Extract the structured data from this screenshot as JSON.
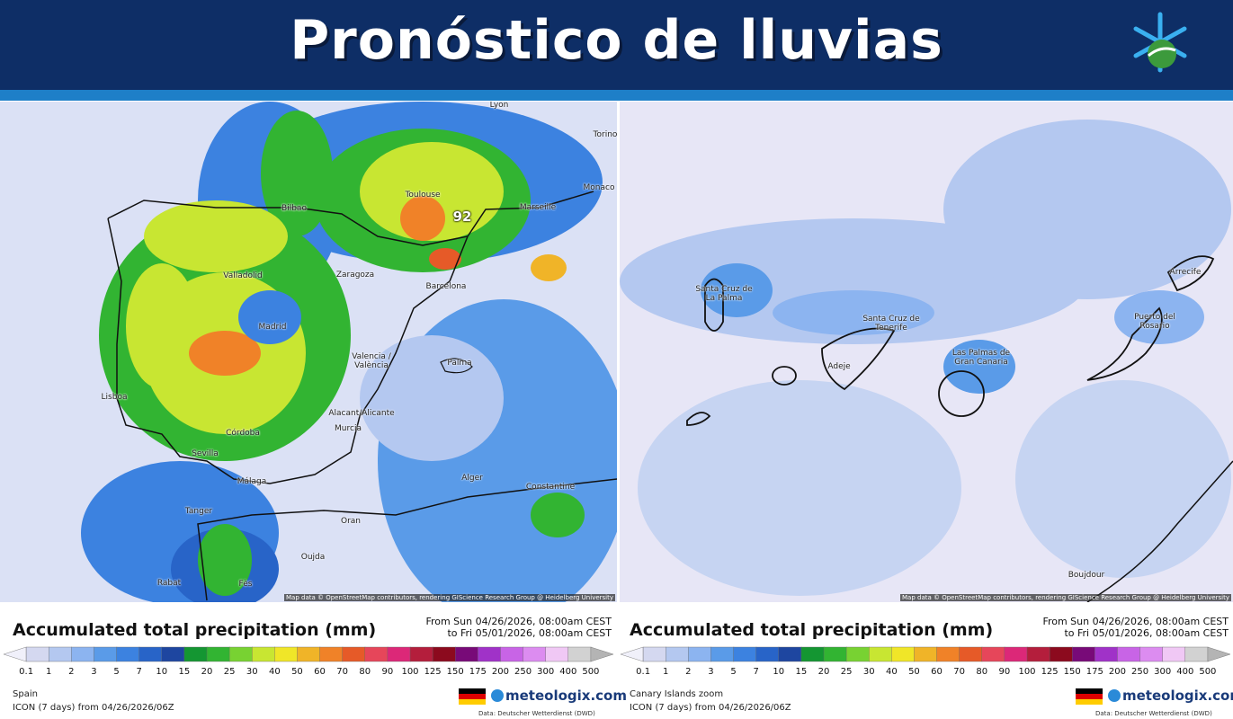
{
  "header": {
    "title": "Pronóstico de lluvias"
  },
  "attribution": "Map data © OpenStreetMap contributors, rendering GIScience Research Group @ Heidelberg University",
  "scale": {
    "labels": [
      "0.1",
      "1",
      "2",
      "3",
      "5",
      "7",
      "10",
      "15",
      "20",
      "25",
      "30",
      "40",
      "50",
      "60",
      "70",
      "80",
      "90",
      "100",
      "125",
      "150",
      "175",
      "200",
      "250",
      "300",
      "400",
      "500"
    ],
    "colors": [
      "#f0f0fa",
      "#d4d8f0",
      "#b4c8f0",
      "#8cb4f0",
      "#5a9be8",
      "#3c82e0",
      "#2864c8",
      "#1e46a0",
      "#149632",
      "#32b432",
      "#78d232",
      "#c8e632",
      "#f0e628",
      "#f0b428",
      "#f08228",
      "#e65a28",
      "#e6465a",
      "#dc2878",
      "#b41e3c",
      "#8c0a1e",
      "#780a78",
      "#a032c8",
      "#c864e6",
      "#dc8cf0",
      "#f0c8f5",
      "#d2d2d2",
      "#b4b4b4"
    ]
  },
  "panels": [
    {
      "legend": {
        "title": "Accumulated total precipitation (mm)",
        "range_from": "From Sun 04/26/2026, 08:00am CEST",
        "range_to": "to Fri 05/01/2026, 08:00am CEST",
        "region": "Spain",
        "model": "ICON (7 days) from 04/26/2026/06Z",
        "brand": "meteologix.com",
        "source": "Data: Deutscher Wetterdienst (DWD)"
      },
      "places": [
        "Bilbao",
        "Toulouse",
        "Marseille",
        "Lyon",
        "Torino",
        "Monaco",
        "Zaragoza",
        "Barcelona",
        "Valladolid",
        "Madrid",
        "Valencia / València",
        "Palma",
        "Lisboa",
        "Alacant/Alicante",
        "Murcia",
        "Córdoba",
        "Sevilla",
        "Málaga",
        "Alger",
        "Constantine",
        "Oran",
        "Tanger",
        "Rabat",
        "Fès",
        "Oujda"
      ],
      "max_label": "92"
    },
    {
      "legend": {
        "title": "Accumulated total precipitation (mm)",
        "range_from": "From Sun 04/26/2026, 08:00am CEST",
        "range_to": "to Fri 05/01/2026, 08:00am CEST",
        "region": "Canary Islands zoom",
        "model": "ICON (7 days) from 04/26/2026/06Z",
        "brand": "meteologix.com",
        "source": "Data: Deutscher Wetterdienst (DWD)"
      },
      "places": [
        "Santa Cruz de La Palma",
        "Santa Cruz de Tenerife",
        "Adeje",
        "Las Palmas de Gran Canaria",
        "Puerto del Rosario",
        "Arrecife",
        "Boujdour"
      ]
    }
  ]
}
